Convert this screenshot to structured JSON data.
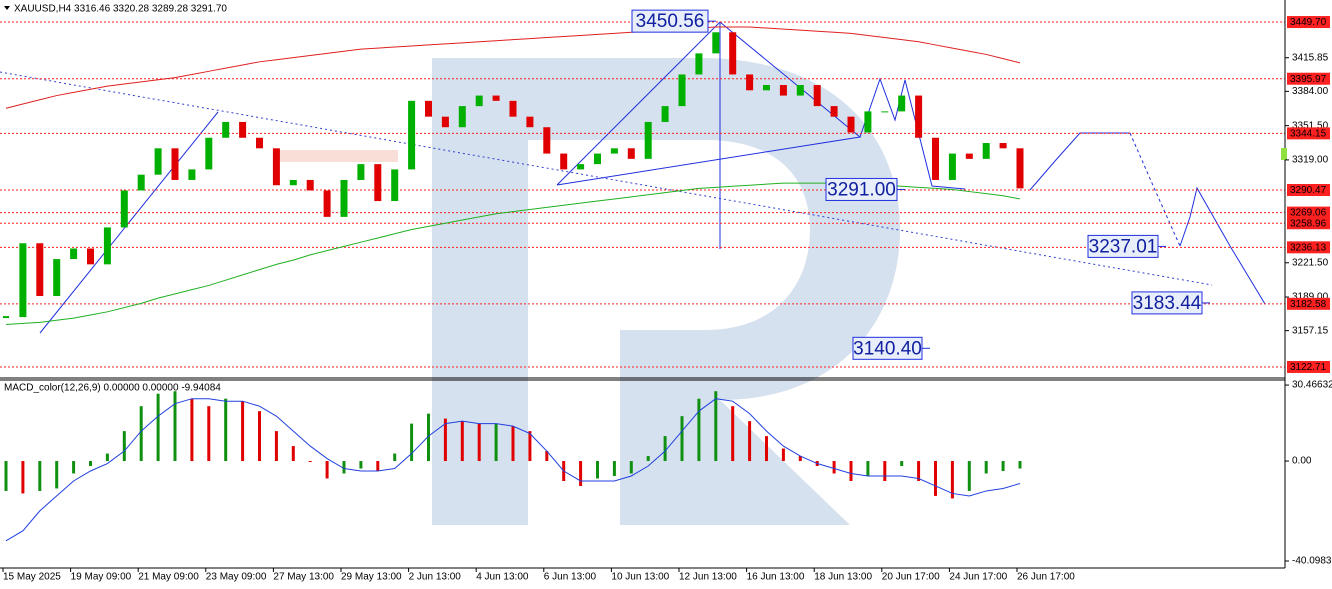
{
  "header": "XAUUSD,H4  3316.46 3320.28 3289.28 3291.70",
  "chart_data": [
    {
      "type": "candlestick",
      "up_color": "#00b000",
      "down_color": "#e00000",
      "categories": [
        "15 May 2025",
        null,
        null,
        null,
        "19 May 09:00",
        null,
        null,
        null,
        "21 May 09:00",
        null,
        null,
        null,
        "23 May 09:00",
        null,
        null,
        null,
        "27 May 13:00",
        null,
        null,
        null,
        "29 May 13:00",
        null,
        null,
        null,
        "2 Jun 13:00",
        null,
        null,
        null,
        "4 Jun 13:00",
        null,
        null,
        null,
        "6 Jun 13:00",
        null,
        null,
        null,
        "10 Jun 13:00",
        null,
        null,
        null,
        "12 Jun 13:00",
        null,
        null,
        null,
        "16 Jun 13:00",
        null,
        null,
        null,
        "18 Jun 13:00",
        null,
        null,
        null,
        "20 Jun 17:00",
        null,
        null,
        null,
        "24 Jun 17:00",
        null,
        null,
        null,
        "26 Jun 17:00"
      ],
      "values": [
        3170,
        3240,
        3190,
        3225,
        3235,
        3220,
        3255,
        3290,
        3305,
        3330,
        3300,
        3310,
        3340,
        3355,
        3340,
        3330,
        3295,
        3300,
        3290,
        3265,
        3300,
        3315,
        3280,
        3310,
        3375,
        3360,
        3350,
        3370,
        3380,
        3375,
        3360,
        3350,
        3325,
        3310,
        3315,
        3325,
        3330,
        3320,
        3355,
        3370,
        3400,
        3420,
        3440,
        3400,
        3385,
        3390,
        3380,
        3390,
        3370,
        3360,
        3345,
        3365,
        3365,
        3380,
        3340,
        3300,
        3325,
        3320,
        3335,
        3330,
        3292
      ],
      "series": [
        {
          "color": "#e02020",
          "values": [
            3368,
            3372,
            3376,
            3380,
            3383,
            3386,
            3389,
            3391,
            3393,
            3395,
            3397,
            3400,
            3403,
            3406,
            3409,
            3412,
            3414,
            3416,
            3418,
            3420,
            3422,
            3424,
            3425,
            3426,
            3427,
            3428,
            3429,
            3430,
            3431,
            3432,
            3433,
            3434,
            3435,
            3436,
            3437,
            3438,
            3439,
            3440,
            3441,
            3442,
            3443,
            3444,
            3445,
            3445,
            3445,
            3444,
            3443,
            3442,
            3441,
            3440,
            3439,
            3437,
            3435,
            3433,
            3431,
            3428,
            3425,
            3422,
            3419,
            3415,
            3411
          ]
        },
        {
          "color": "#20b020",
          "values": [
            3163,
            3164,
            3165,
            3167,
            3169,
            3172,
            3175,
            3179,
            3183,
            3188,
            3192,
            3196,
            3200,
            3205,
            3210,
            3215,
            3220,
            3224,
            3229,
            3233,
            3237,
            3241,
            3245,
            3249,
            3253,
            3256,
            3259,
            3262,
            3265,
            3268,
            3270,
            3272,
            3274,
            3276,
            3278,
            3280,
            3282,
            3284,
            3286,
            3288,
            3290,
            3292,
            3293,
            3294,
            3295,
            3296,
            3297,
            3297,
            3297,
            3297,
            3297,
            3296,
            3295,
            3294,
            3293,
            3292,
            3291,
            3289,
            3287,
            3285,
            3282
          ]
        }
      ],
      "ylim": [
        3113.2,
        3470.6
      ],
      "yticks": [
        3415.85,
        {
          "value": 3384.0,
          "label": "3384.00"
        },
        {
          "value": 3351.5,
          "label": "3351.50"
        },
        {
          "value": 3319.0,
          "label": "3319.00"
        },
        {
          "value": 3221.5,
          "label": "3221.50"
        },
        {
          "value": 3189.0,
          "label": "3189.00"
        },
        3157.15
      ],
      "levels": [
        {
          "value": 3449.7,
          "label": "3449.70"
        },
        3395.97,
        3344.15,
        3290.47,
        3269.06,
        3258.96,
        3236.13,
        3182.58,
        3122.71
      ],
      "level_color": "#ff2020",
      "annotations": [
        3450.56,
        {
          "value": 3291.0,
          "label": "3291.00"
        },
        3237.01,
        3183.44,
        {
          "value": 3140.4,
          "label": "3140.40"
        }
      ]
    },
    {
      "type": "macd",
      "title": "MACD_color(12,26,9) 0.00000 0.00000 -9.94084",
      "up_color": "#109010",
      "down_color": "#e00000",
      "line_color": "#2040e0",
      "values": [
        -12,
        -13,
        -12,
        -11,
        -5,
        -2,
        3,
        12,
        22,
        27,
        28,
        25,
        22,
        25,
        24,
        20,
        12,
        6,
        0,
        -7,
        -5,
        -3,
        -4,
        3,
        15,
        19,
        17,
        16,
        15,
        15,
        14,
        12,
        4,
        -8,
        -10,
        -7,
        -6,
        -5,
        2,
        10,
        18,
        25,
        28,
        22,
        16,
        10,
        5,
        2,
        -2,
        -5,
        -8,
        -6,
        -8,
        -2,
        -8,
        -14,
        -15,
        -12,
        -5,
        -4,
        -3
      ],
      "signal": [
        -32,
        -28,
        -20,
        -14,
        -8,
        -4,
        -1,
        4,
        12,
        18,
        23,
        25,
        25,
        24,
        24,
        22,
        18,
        12,
        6,
        1,
        -3,
        -4,
        -4,
        -3,
        3,
        10,
        15,
        16,
        15,
        15,
        14,
        11,
        4,
        -4,
        -8,
        -8,
        -8,
        -6,
        -2,
        4,
        12,
        20,
        25,
        24,
        19,
        12,
        6,
        2,
        -1,
        -3,
        -5,
        -6,
        -6,
        -6,
        -7,
        -10,
        -13,
        -14,
        -12,
        -11,
        -9
      ],
      "ylim": [
        -41.7,
        32.9
      ],
      "yticks": [
        30.46632,
        {
          "value": 0,
          "label": "0.00"
        },
        -40.09831
      ]
    }
  ]
}
